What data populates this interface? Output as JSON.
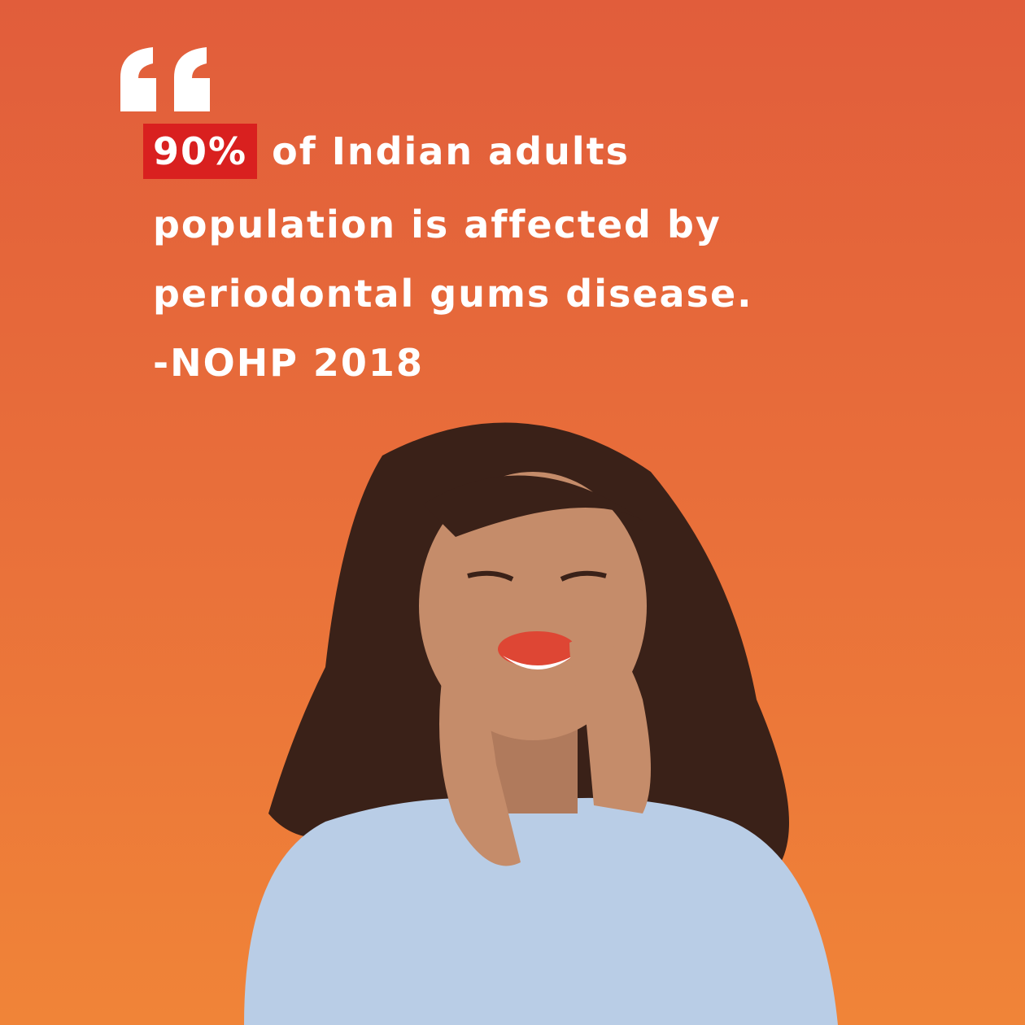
{
  "quote": {
    "highlight": "90%",
    "lines": [
      "of Indian adults",
      "population is affected by",
      "periodontal gums disease."
    ]
  },
  "source": "-NOHP 2018"
}
